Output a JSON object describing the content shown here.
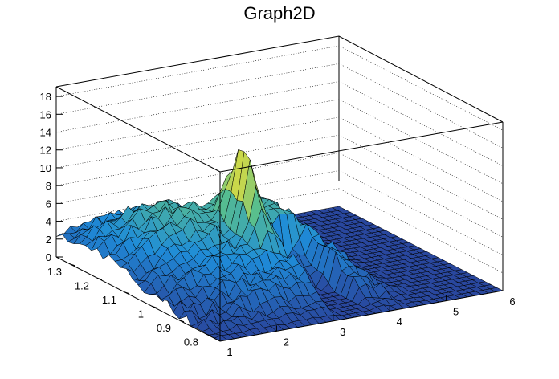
{
  "title": "Graph2D",
  "chart_data": {
    "type": "surface",
    "title": "Graph2D",
    "xlabel": "",
    "ylabel": "",
    "zlabel": "",
    "xlim": [
      1,
      6
    ],
    "ylim": [
      0.75,
      1.35
    ],
    "zlim": [
      0,
      19
    ],
    "x_ticks": [
      "1",
      "2",
      "3",
      "4",
      "5",
      "6"
    ],
    "y_ticks": [
      "0.8",
      "0.9",
      "1",
      "1.1",
      "1.2",
      "1.3"
    ],
    "z_ticks": [
      "0",
      "2",
      "4",
      "6",
      "8",
      "10",
      "12",
      "14",
      "16",
      "18"
    ],
    "grid": true,
    "colormap": "viridis-like (blue-green-yellow)",
    "peak": {
      "x": 2.9,
      "y": 1.05,
      "z": 13.5
    }
  }
}
